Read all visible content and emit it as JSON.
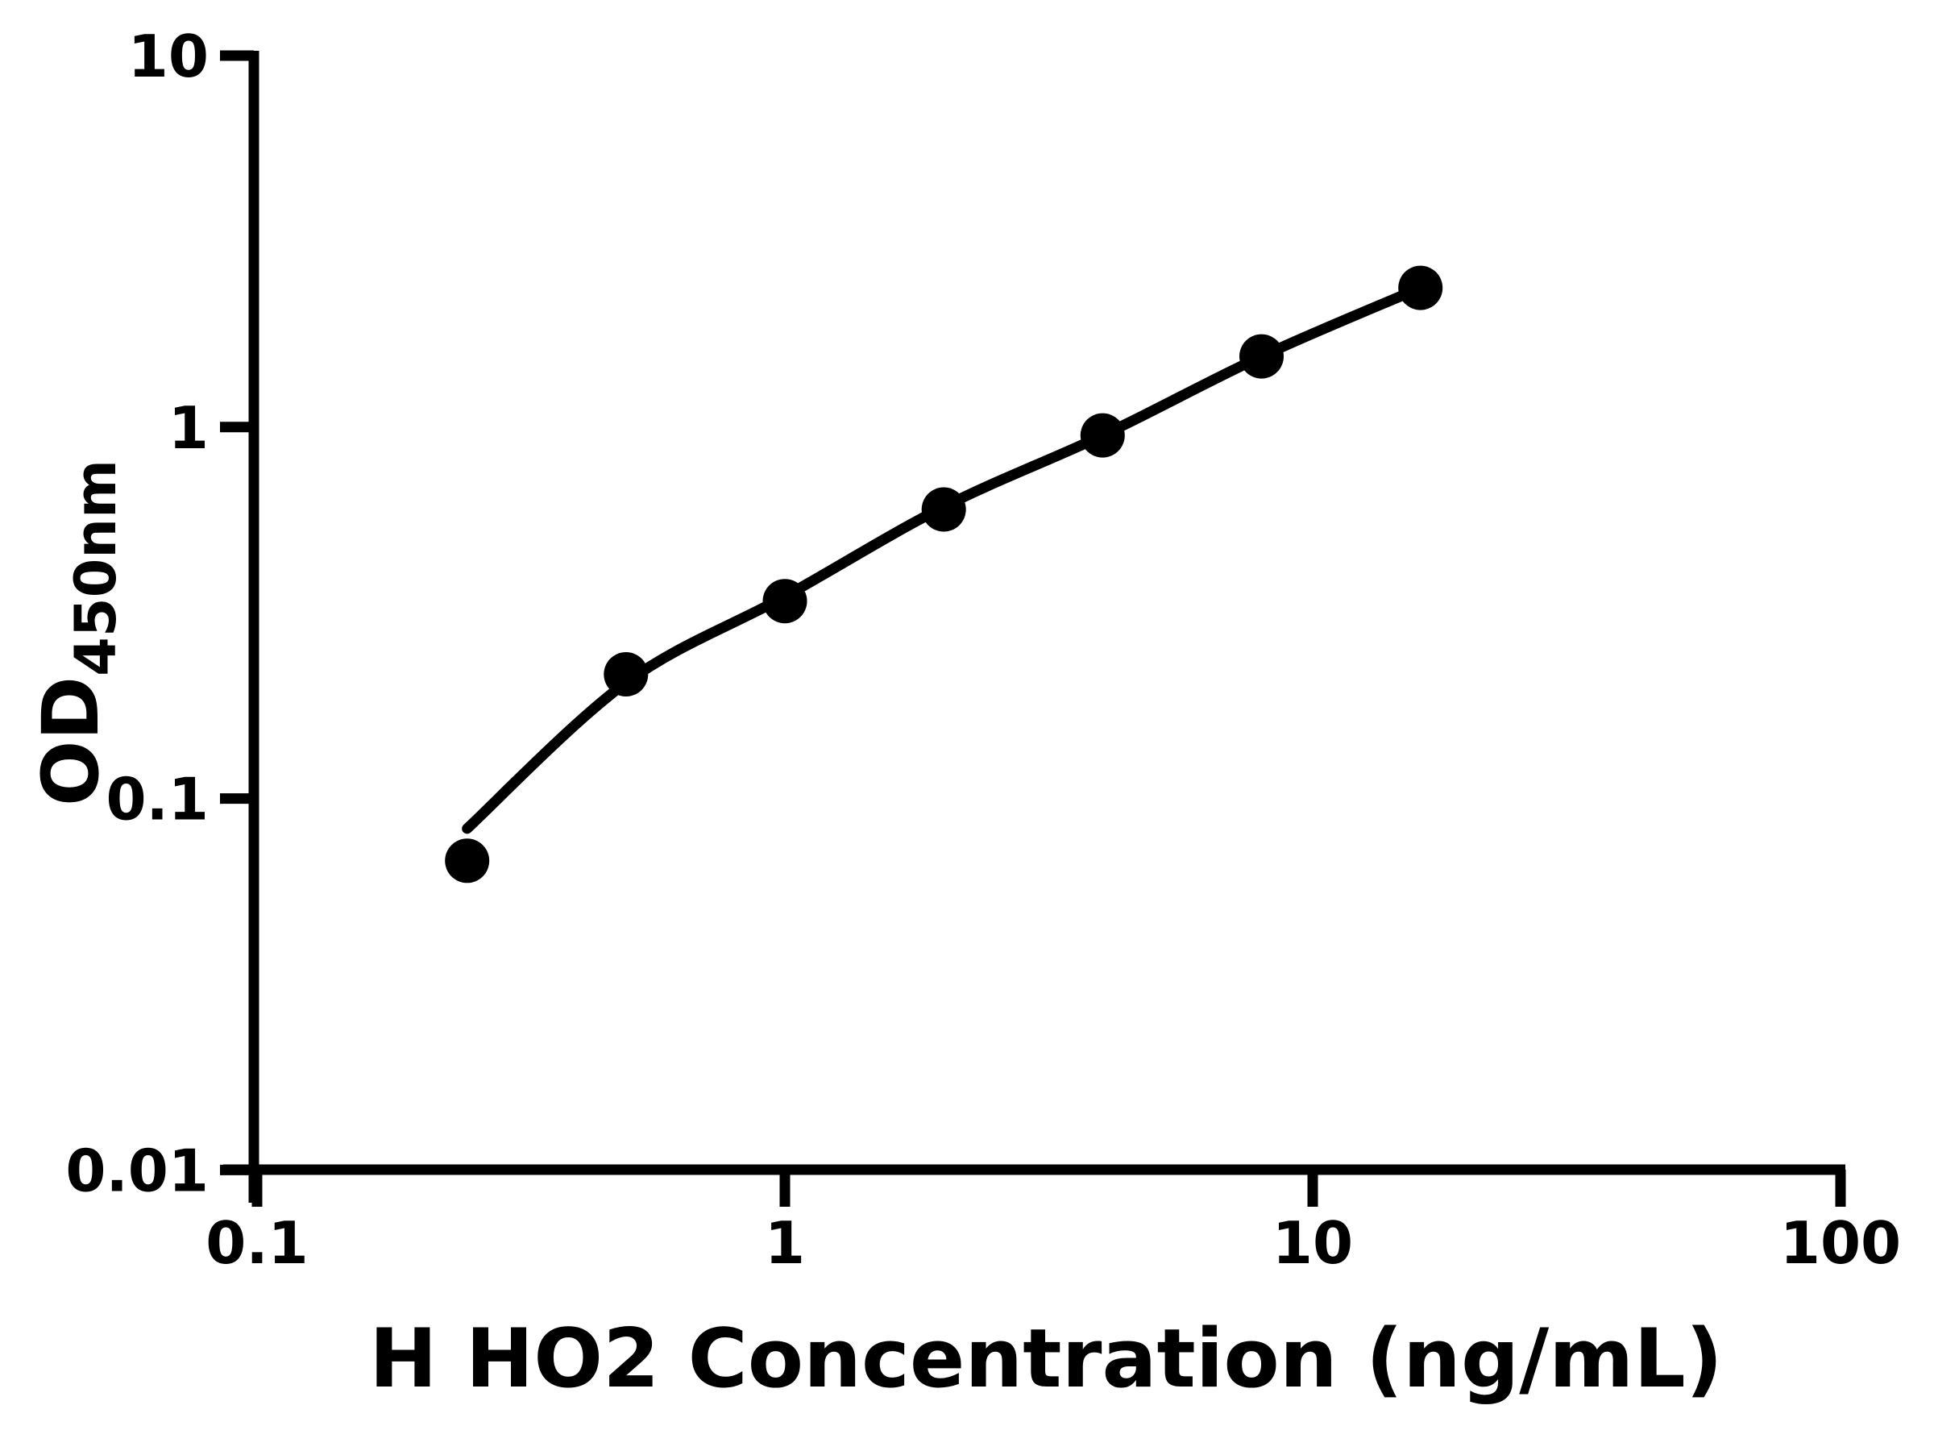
{
  "figure": {
    "background_color": "#ffffff",
    "foreground_color": "#000000"
  },
  "chart_data": {
    "type": "scatter",
    "title": "H HO2 Concentration (ng/mL)",
    "xlabel": "H HO2 Concentration (ng/mL)",
    "ylabel_main": "OD",
    "ylabel_sub": "450nm",
    "x_scale": "log",
    "y_scale": "log",
    "xlim": [
      0.1,
      100
    ],
    "ylim": [
      0.01,
      10
    ],
    "grid": false,
    "legend": "none",
    "x_ticks": {
      "values": [
        0.1,
        1,
        10,
        100
      ],
      "labels": [
        "0.1",
        "1",
        "10",
        "100"
      ]
    },
    "y_ticks": {
      "values": [
        10,
        1,
        0.1,
        0.01
      ],
      "labels": [
        "10",
        "1",
        "0.1",
        "0.01"
      ]
    },
    "series": [
      {
        "name": "standard-curve-points",
        "type": "scatter",
        "x": [
          0.25,
          0.5,
          1,
          2,
          4,
          8,
          16
        ],
        "y": [
          0.068,
          0.216,
          0.34,
          0.6,
          0.95,
          1.55,
          2.37
        ]
      },
      {
        "name": "fitted-curve",
        "type": "line",
        "x": [
          0.25,
          0.5,
          1,
          2,
          4,
          8,
          16
        ],
        "y": [
          0.083,
          0.205,
          0.35,
          0.61,
          0.95,
          1.55,
          2.37
        ]
      }
    ],
    "marker_color": "#000000",
    "line_color": "#000000",
    "axis_color": "#000000"
  }
}
